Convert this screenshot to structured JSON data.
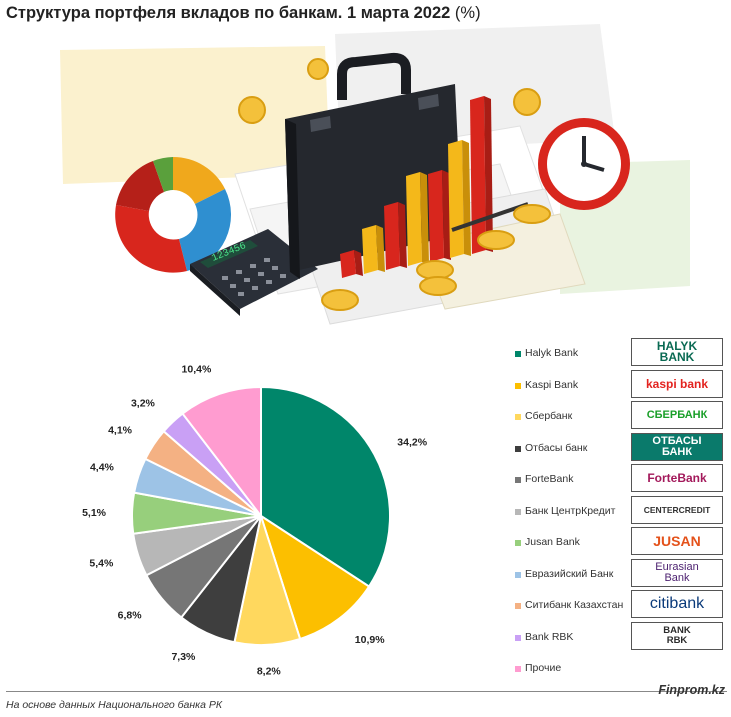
{
  "title": "Структура портфеля вкладов по банкам. 1 марта 2022",
  "title_unit": "(%)",
  "calculator_display": "123456",
  "footer": {
    "source": "На основе данных Национального банка РК",
    "brand": "Finprom.kz"
  },
  "logos": {
    "halyk": [
      "HALYK",
      "BANK"
    ],
    "kaspi": "kaspi bank",
    "sber": "СБЕРБАНК",
    "otbasy": [
      "ОТБАСЫ",
      "БАНК"
    ],
    "forte": "ForteBank",
    "centercredit": "CENTERCREDIT",
    "jusan": "JUSAN",
    "eurasian": [
      "Eurasian",
      "Bank"
    ],
    "citi": "citibank",
    "rbk": [
      "BANK",
      "RBK"
    ]
  },
  "chart_data": {
    "type": "pie",
    "title": "Структура портфеля вкладов по банкам. 1 марта 2022 (%)",
    "unit": "%",
    "legend_position": "right",
    "categories": [
      "Halyk Bank",
      "Kaspi Bank",
      "Сбербанк",
      "Отбасы банк",
      "ForteBank",
      "Банк ЦентрКредит",
      "Jusan Bank",
      "Евразийский Банк",
      "Ситибанк Казахстан",
      "Bank RBK",
      "Прочие"
    ],
    "values": [
      34.2,
      10.9,
      8.2,
      7.3,
      6.8,
      5.4,
      5.1,
      4.4,
      4.1,
      3.2,
      10.4
    ],
    "data_labels": [
      "34,2%",
      "10,9%",
      "8,2%",
      "7,3%",
      "6,8%",
      "5,4%",
      "5,1%",
      "4,4%",
      "4,1%",
      "3,2%",
      "10,4%"
    ],
    "colors": [
      "#00866a",
      "#fcbf00",
      "#ffd85e",
      "#3e3e3e",
      "#767676",
      "#b7b7b7",
      "#97cf7c",
      "#9dc3e6",
      "#f4b183",
      "#c9a0f5",
      "#ff9cd0"
    ]
  }
}
